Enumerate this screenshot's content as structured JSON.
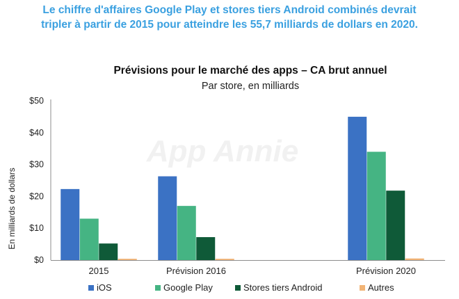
{
  "headline": {
    "line1": "Le chiffre d'affaires Google Play et stores tiers Android combinés devrait",
    "line2": "tripler à partir de 2015 pour atteindre les 55,7 milliards de dollars en 2020."
  },
  "watermark": "App Annie",
  "chart_data": {
    "type": "bar",
    "title": "Prévisions pour le marché des apps – CA brut annuel",
    "subtitle": "Par store, en milliards",
    "xlabel": "",
    "ylabel": "En milliards de dollars",
    "ylim": [
      0,
      50
    ],
    "yticks": [
      0,
      10,
      20,
      30,
      40,
      50
    ],
    "ytick_labels": [
      "$0",
      "$10",
      "$20",
      "$30",
      "$40",
      "$50"
    ],
    "grid": false,
    "legend_position": "bottom",
    "categories": [
      "2015",
      "Prévision 2016",
      "Prévision 2020"
    ],
    "series": [
      {
        "name": "iOS",
        "color": "#3b72c4",
        "values": [
          22.3,
          26.3,
          45
        ]
      },
      {
        "name": "Google Play",
        "color": "#45b483",
        "values": [
          13,
          17,
          34
        ]
      },
      {
        "name": "Stores tiers Android",
        "color": "#0f5a38",
        "values": [
          5.2,
          7.2,
          21.8
        ]
      },
      {
        "name": "Autres",
        "color": "#f2b476",
        "values": [
          0.4,
          0.4,
          0.5
        ]
      }
    ]
  }
}
